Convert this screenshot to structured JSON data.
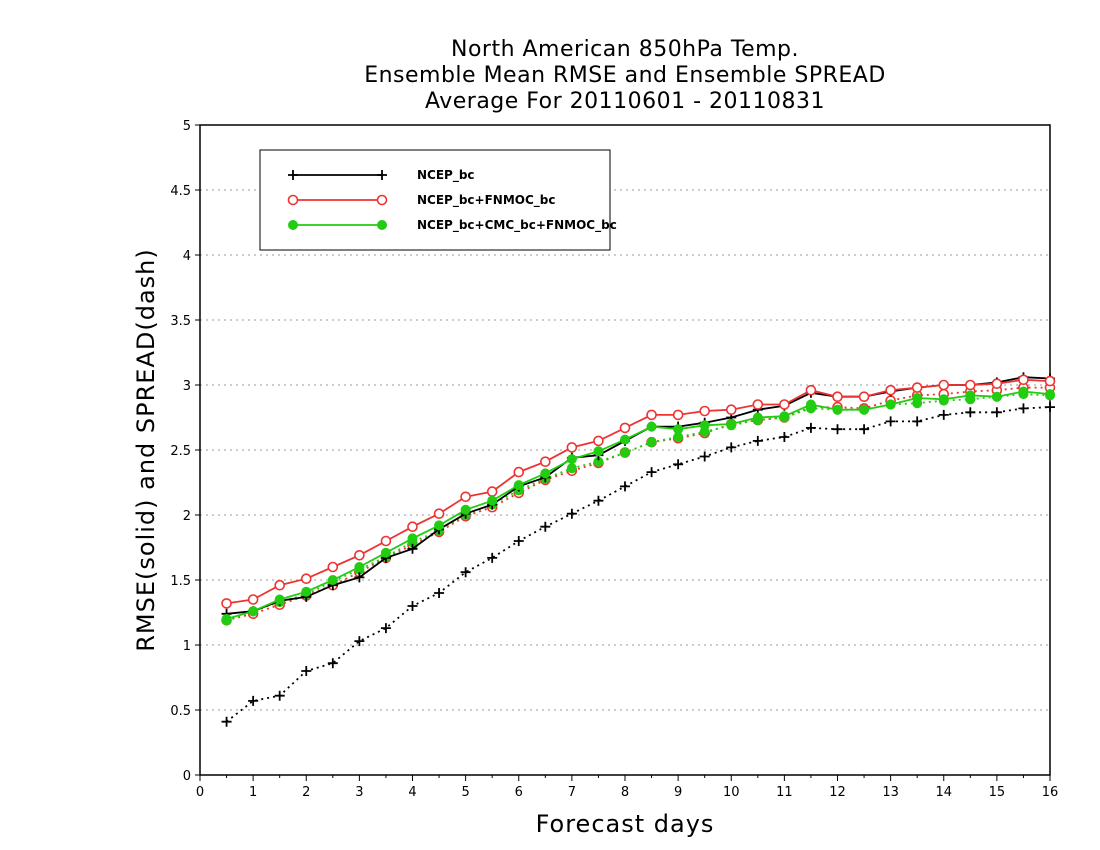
{
  "chart_data": {
    "type": "line",
    "title_lines": [
      "North American 850hPa Temp.",
      "Ensemble Mean RMSE and Ensemble SPREAD",
      "Average For 20110601 - 20110831"
    ],
    "xlabel": "Forecast days",
    "ylabel": "RMSE(solid) and SPREAD(dash)",
    "xlim": [
      0,
      16
    ],
    "ylim": [
      0,
      5
    ],
    "x_ticks": [
      "0",
      "1",
      "2",
      "3",
      "4",
      "5",
      "6",
      "7",
      "8",
      "9",
      "10",
      "11",
      "12",
      "13",
      "14",
      "15",
      "16"
    ],
    "y_ticks": [
      "0",
      "0.5",
      "1",
      "1.5",
      "2",
      "2.5",
      "3",
      "3.5",
      "4",
      "4.5",
      "5"
    ],
    "grid": "horizontal dotted",
    "legend_position": "top-left",
    "x": [
      0.5,
      1,
      1.5,
      2,
      2.5,
      3,
      3.5,
      4,
      4.5,
      5,
      5.5,
      6,
      6.5,
      7,
      7.5,
      8,
      8.5,
      9,
      9.5,
      10,
      10.5,
      11,
      11.5,
      12,
      12.5,
      13,
      13.5,
      14,
      14.5,
      15,
      15.5,
      16
    ],
    "series": [
      {
        "name": "NCEP_bc",
        "color": "#000000",
        "marker": "plus",
        "rmse": [
          1.24,
          1.26,
          1.34,
          1.37,
          1.46,
          1.52,
          1.67,
          1.74,
          1.89,
          2.01,
          2.08,
          2.22,
          2.29,
          2.44,
          2.46,
          2.57,
          2.68,
          2.68,
          2.71,
          2.75,
          2.81,
          2.84,
          2.94,
          2.91,
          2.91,
          2.95,
          2.98,
          3.0,
          3.0,
          3.02,
          3.06,
          3.05
        ],
        "spread": [
          0.41,
          0.57,
          0.61,
          0.8,
          0.86,
          1.03,
          1.13,
          1.3,
          1.4,
          1.56,
          1.67,
          1.8,
          1.91,
          2.01,
          2.11,
          2.22,
          2.33,
          2.39,
          2.45,
          2.52,
          2.57,
          2.6,
          2.67,
          2.66,
          2.66,
          2.72,
          2.72,
          2.77,
          2.79,
          2.79,
          2.82,
          2.83
        ]
      },
      {
        "name": "NCEP_bc+FNMOC_bc",
        "color": "#ee3333",
        "marker": "open-circle",
        "rmse": [
          1.32,
          1.35,
          1.46,
          1.51,
          1.6,
          1.69,
          1.8,
          1.91,
          2.01,
          2.14,
          2.18,
          2.33,
          2.41,
          2.52,
          2.57,
          2.67,
          2.77,
          2.77,
          2.8,
          2.81,
          2.85,
          2.85,
          2.96,
          2.91,
          2.91,
          2.96,
          2.98,
          3.0,
          3.0,
          3.01,
          3.04,
          3.03
        ],
        "spread": [
          1.19,
          1.24,
          1.31,
          1.38,
          1.46,
          1.56,
          1.67,
          1.77,
          1.87,
          1.99,
          2.06,
          2.17,
          2.27,
          2.34,
          2.4,
          2.48,
          2.56,
          2.59,
          2.63,
          2.7,
          2.73,
          2.75,
          2.83,
          2.83,
          2.82,
          2.88,
          2.92,
          2.93,
          2.95,
          2.96,
          2.98,
          2.98
        ]
      },
      {
        "name": "NCEP_bc+CMC_bc+FNMOC_bc",
        "color": "#22cc11",
        "marker": "filled-circle",
        "rmse": [
          1.2,
          1.26,
          1.35,
          1.41,
          1.5,
          1.6,
          1.71,
          1.82,
          1.92,
          2.04,
          2.11,
          2.23,
          2.32,
          2.43,
          2.49,
          2.58,
          2.68,
          2.66,
          2.69,
          2.7,
          2.75,
          2.76,
          2.85,
          2.81,
          2.81,
          2.85,
          2.9,
          2.89,
          2.92,
          2.91,
          2.95,
          2.93
        ],
        "spread": [
          1.19,
          1.26,
          1.33,
          1.39,
          1.49,
          1.58,
          1.68,
          1.79,
          1.88,
          2.0,
          2.08,
          2.19,
          2.28,
          2.36,
          2.41,
          2.48,
          2.56,
          2.6,
          2.64,
          2.69,
          2.73,
          2.75,
          2.82,
          2.81,
          2.81,
          2.85,
          2.86,
          2.88,
          2.89,
          2.91,
          2.93,
          2.92
        ]
      }
    ]
  }
}
